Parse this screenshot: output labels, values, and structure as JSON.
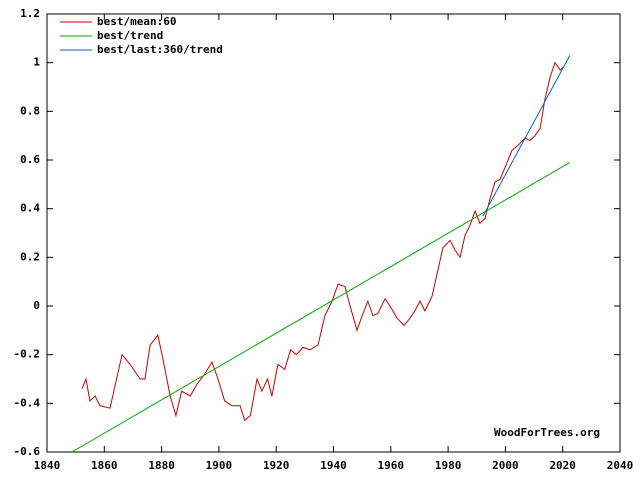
{
  "chart_data": {
    "type": "line",
    "annotation": "WoodForTrees.org",
    "xlim": [
      1840,
      2040
    ],
    "xticks": [
      1840,
      1860,
      1880,
      1900,
      1920,
      1940,
      1960,
      1980,
      2000,
      2020,
      2040
    ],
    "ylim": [
      -0.6,
      1.2
    ],
    "yticks": [
      -0.6,
      -0.4,
      -0.2,
      0,
      0.2,
      0.4,
      0.6,
      0.8,
      1,
      1.2
    ],
    "grid": false,
    "legend": "top-left",
    "series": [
      {
        "name": "best/mean:60",
        "color": "#cc0000",
        "x": [
          1852.2,
          1853.6,
          1855,
          1856.8,
          1858.5,
          1862,
          1863.7,
          1866.2,
          1869,
          1872.5,
          1874.2,
          1876,
          1878.7,
          1880.5,
          1883,
          1885,
          1887,
          1890,
          1892.4,
          1895,
          1897.6,
          1899.7,
          1902,
          1904.6,
          1907.4,
          1909,
          1911,
          1913.3,
          1915,
          1917,
          1918.5,
          1920.6,
          1923,
          1925,
          1927,
          1929.4,
          1931.8,
          1934.6,
          1937,
          1939.5,
          1941.6,
          1944,
          1945.8,
          1948.2,
          1950,
          1952,
          1953.8,
          1955.5,
          1958,
          1959.7,
          1962.2,
          1964.6,
          1966.7,
          1968.4,
          1970.2,
          1971.9,
          1974.4,
          1976.5,
          1978.2,
          1980.7,
          1982.4,
          1984.2,
          1985.9,
          1987.6,
          1989.4,
          1991.1,
          1992.9,
          1994.6,
          1996.4,
          1998.1,
          1999.9,
          2002.3,
          2004.4,
          2006.8,
          2008.6,
          2010.3,
          2012.1,
          2013.8,
          2015.6,
          2017.3,
          2019.1,
          2020.1
        ],
        "values": [
          -0.34,
          -0.3,
          -0.39,
          -0.37,
          -0.41,
          -0.42,
          -0.33,
          -0.2,
          -0.24,
          -0.3,
          -0.3,
          -0.16,
          -0.12,
          -0.22,
          -0.37,
          -0.45,
          -0.35,
          -0.37,
          -0.32,
          -0.28,
          -0.23,
          -0.3,
          -0.39,
          -0.41,
          -0.41,
          -0.47,
          -0.45,
          -0.3,
          -0.35,
          -0.3,
          -0.37,
          -0.24,
          -0.26,
          -0.18,
          -0.2,
          -0.17,
          -0.18,
          -0.16,
          -0.04,
          0.02,
          0.09,
          0.08,
          0.0,
          -0.1,
          -0.04,
          0.02,
          -0.04,
          -0.03,
          0.03,
          0.0,
          -0.05,
          -0.08,
          -0.05,
          -0.02,
          0.02,
          -0.02,
          0.04,
          0.15,
          0.24,
          0.27,
          0.23,
          0.2,
          0.29,
          0.33,
          0.39,
          0.34,
          0.36,
          0.44,
          0.51,
          0.52,
          0.57,
          0.64,
          0.66,
          0.69,
          0.68,
          0.7,
          0.73,
          0.85,
          0.94,
          1.0,
          0.97,
          0.98
        ]
      },
      {
        "name": "best/trend",
        "color": "#00aa00",
        "x": [
          1848.7,
          2022.5
        ],
        "values": [
          -0.6,
          0.59
        ]
      },
      {
        "name": "best/last:360/trend",
        "color": "#0066cc",
        "x": [
          1992.2,
          2022.5
        ],
        "values": [
          0.37,
          1.03
        ]
      }
    ]
  }
}
